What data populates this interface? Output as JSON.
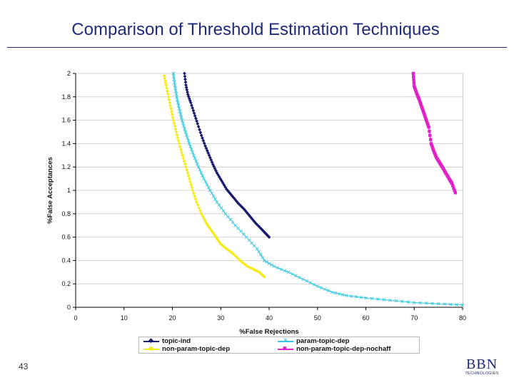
{
  "slide": {
    "title": "Comparison of Threshold Estimation Techniques",
    "page_number": "43",
    "logo": {
      "main": "BBN",
      "sub": "TECHNOLOGIES"
    },
    "accent_color": "#1f2a7a"
  },
  "chart_data": {
    "type": "line",
    "title": "",
    "xlabel": "%False Rejections",
    "ylabel": "%False Acceptances",
    "xlim": [
      0,
      80
    ],
    "ylim": [
      0,
      2
    ],
    "xticks": [
      "0",
      "10",
      "20",
      "30",
      "40",
      "50",
      "60",
      "70",
      "80"
    ],
    "yticks": [
      "0",
      "0.2",
      "0.4",
      "0.6",
      "0.8",
      "1",
      "1.2",
      "1.4",
      "1.6",
      "1.8",
      "2"
    ],
    "grid": "horizontal",
    "legend_position": "bottom",
    "series": [
      {
        "name": "topic-ind",
        "color": "#1a1a6e",
        "marker": "diamond",
        "points": [
          [
            22.5,
            2.0
          ],
          [
            22.8,
            1.9
          ],
          [
            23.2,
            1.82
          ],
          [
            23.8,
            1.75
          ],
          [
            24.5,
            1.66
          ],
          [
            25.2,
            1.57
          ],
          [
            26.0,
            1.47
          ],
          [
            26.8,
            1.38
          ],
          [
            27.6,
            1.3
          ],
          [
            28.4,
            1.22
          ],
          [
            29.2,
            1.15
          ],
          [
            30.2,
            1.08
          ],
          [
            31.2,
            1.01
          ],
          [
            32.4,
            0.95
          ],
          [
            33.6,
            0.89
          ],
          [
            34.8,
            0.84
          ],
          [
            36.0,
            0.78
          ],
          [
            37.2,
            0.72
          ],
          [
            38.4,
            0.67
          ],
          [
            39.3,
            0.63
          ],
          [
            40.0,
            0.6
          ]
        ]
      },
      {
        "name": "param-topic-dep",
        "color": "#33c8e0",
        "marker": "x",
        "points": [
          [
            20.2,
            2.0
          ],
          [
            20.5,
            1.9
          ],
          [
            20.9,
            1.8
          ],
          [
            21.4,
            1.7
          ],
          [
            22.0,
            1.6
          ],
          [
            22.7,
            1.5
          ],
          [
            23.5,
            1.4
          ],
          [
            24.4,
            1.3
          ],
          [
            25.4,
            1.2
          ],
          [
            26.5,
            1.1
          ],
          [
            27.8,
            1.0
          ],
          [
            29.2,
            0.9
          ],
          [
            31.0,
            0.8
          ],
          [
            33.0,
            0.7
          ],
          [
            35.3,
            0.6
          ],
          [
            37.5,
            0.5
          ],
          [
            39.0,
            0.4
          ],
          [
            41.0,
            0.35
          ],
          [
            44.0,
            0.3
          ],
          [
            47.0,
            0.24
          ],
          [
            50.0,
            0.18
          ],
          [
            53.0,
            0.13
          ],
          [
            56.0,
            0.1
          ],
          [
            60.0,
            0.08
          ],
          [
            65.0,
            0.06
          ],
          [
            70.0,
            0.04
          ],
          [
            75.0,
            0.03
          ],
          [
            80.0,
            0.02
          ]
        ]
      },
      {
        "name": "non-param-topic-dep",
        "color": "#f5ea1a",
        "marker": "diamond",
        "points": [
          [
            18.3,
            1.98
          ],
          [
            18.7,
            1.9
          ],
          [
            19.2,
            1.8
          ],
          [
            19.7,
            1.7
          ],
          [
            20.2,
            1.6
          ],
          [
            20.8,
            1.5
          ],
          [
            21.4,
            1.4
          ],
          [
            22.1,
            1.3
          ],
          [
            22.8,
            1.2
          ],
          [
            23.5,
            1.1
          ],
          [
            24.2,
            1.0
          ],
          [
            25.0,
            0.9
          ],
          [
            26.0,
            0.8
          ],
          [
            27.0,
            0.72
          ],
          [
            28.0,
            0.66
          ],
          [
            29.0,
            0.6
          ],
          [
            30.0,
            0.54
          ],
          [
            31.2,
            0.5
          ],
          [
            32.5,
            0.46
          ],
          [
            34.0,
            0.4
          ],
          [
            35.5,
            0.35
          ],
          [
            37.0,
            0.32
          ],
          [
            38.0,
            0.3
          ],
          [
            39.0,
            0.26
          ]
        ]
      },
      {
        "name": "non-param-topic-dep-nochaff",
        "color": "#e020c8",
        "marker": "square",
        "points": [
          [
            69.8,
            2.0
          ],
          [
            70.0,
            1.89
          ],
          [
            70.5,
            1.83
          ],
          [
            71.0,
            1.78
          ],
          [
            71.5,
            1.72
          ],
          [
            72.0,
            1.66
          ],
          [
            72.5,
            1.6
          ],
          [
            73.0,
            1.54
          ],
          [
            73.5,
            1.4
          ],
          [
            74.0,
            1.34
          ],
          [
            74.6,
            1.28
          ],
          [
            75.2,
            1.24
          ],
          [
            75.8,
            1.2
          ],
          [
            76.5,
            1.15
          ],
          [
            77.2,
            1.1
          ],
          [
            77.8,
            1.06
          ],
          [
            78.5,
            0.98
          ]
        ]
      }
    ]
  }
}
